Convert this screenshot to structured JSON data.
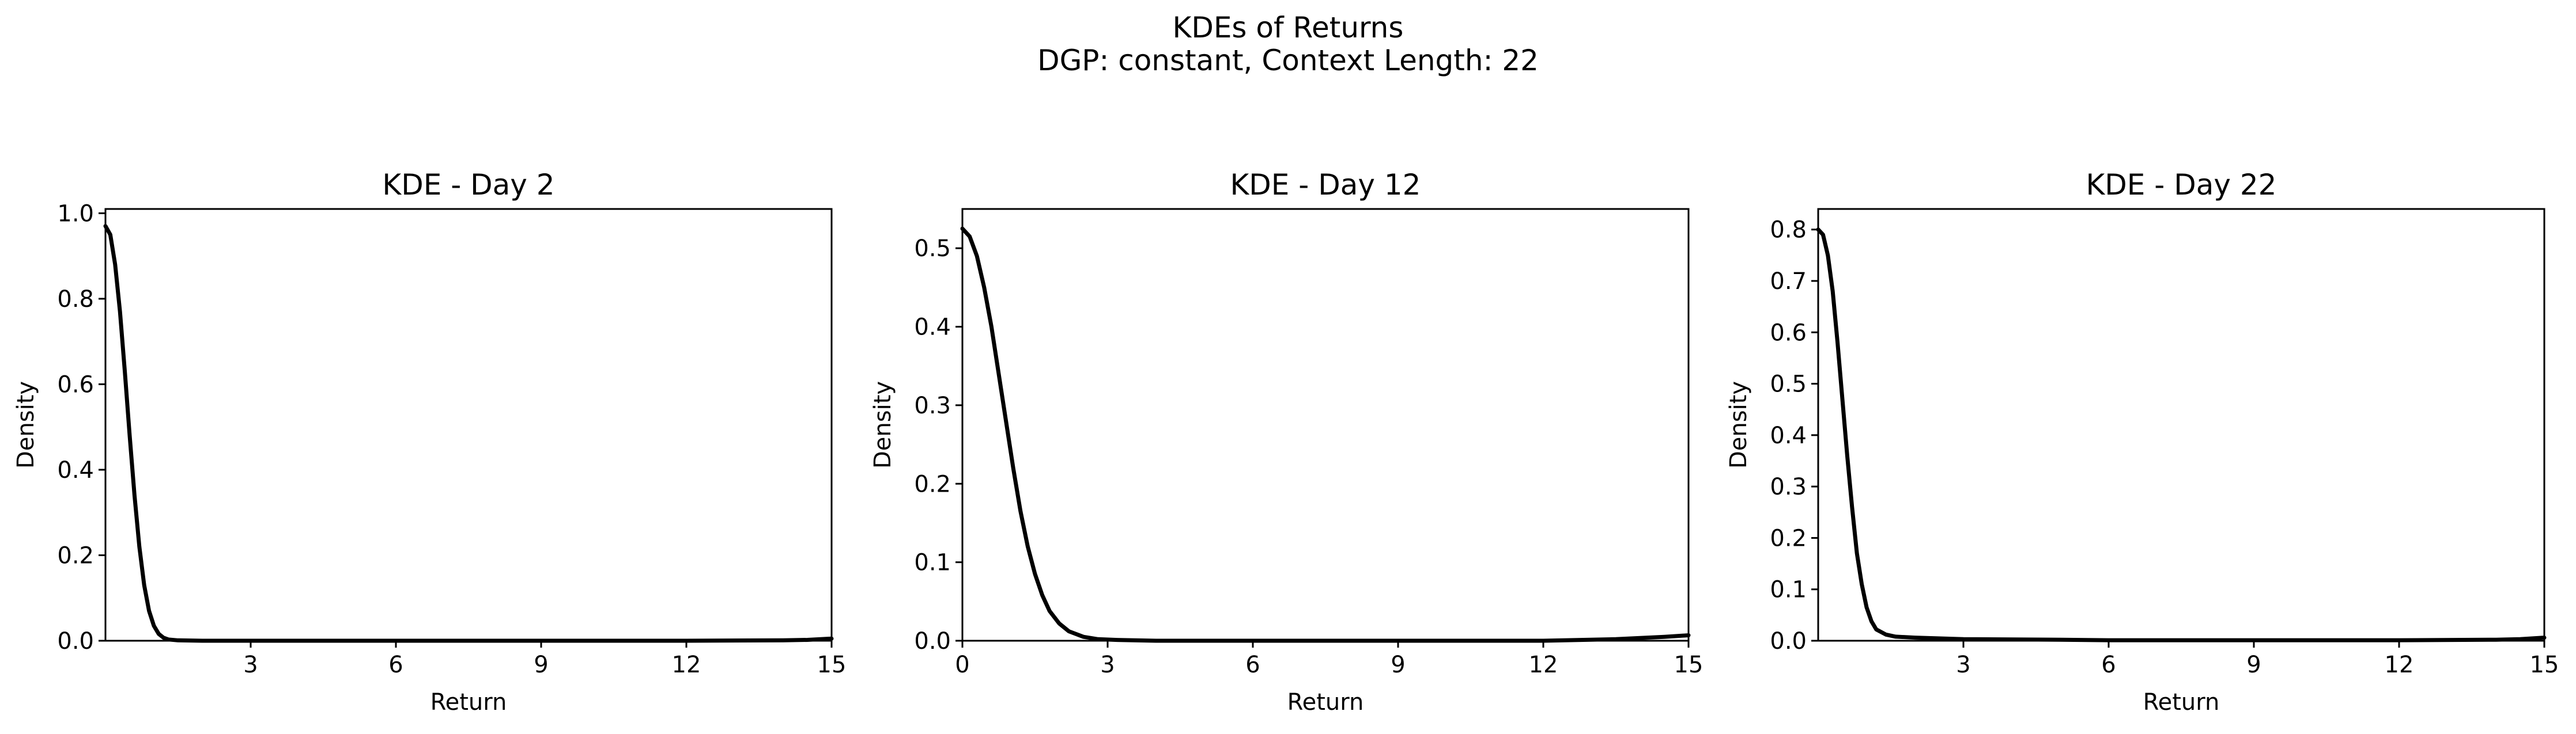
{
  "figure": {
    "title": "KDEs of Returns",
    "subtitle": "DGP: constant, Context Length: 22"
  },
  "chart_data": [
    {
      "type": "line",
      "title": "KDE - Day 2",
      "xlabel": "Return",
      "ylabel": "Density",
      "xlim": [
        0,
        15
      ],
      "ylim": [
        0,
        1.01
      ],
      "xticks": [
        3,
        6,
        9,
        12,
        15
      ],
      "yticks": [
        0.0,
        0.2,
        0.4,
        0.6,
        0.8,
        1.0
      ],
      "ytick_labels": [
        "0.0",
        "0.2",
        "0.4",
        "0.6",
        "0.8",
        "1.0"
      ],
      "series": [
        {
          "x": [
            0,
            0.1,
            0.2,
            0.3,
            0.4,
            0.5,
            0.6,
            0.7,
            0.8,
            0.9,
            1.0,
            1.1,
            1.2,
            1.3,
            1.5,
            2,
            3,
            6,
            9,
            12,
            14,
            14.5,
            15
          ],
          "values": [
            0.97,
            0.95,
            0.88,
            0.77,
            0.63,
            0.48,
            0.34,
            0.22,
            0.13,
            0.07,
            0.035,
            0.016,
            0.007,
            0.003,
            0.001,
            0.0,
            0.0,
            0.0,
            0.0,
            0.0,
            0.001,
            0.002,
            0.005
          ]
        }
      ],
      "grid": false
    },
    {
      "type": "line",
      "title": "KDE - Day 12",
      "xlabel": "Return",
      "ylabel": "Density",
      "xlim": [
        0,
        15
      ],
      "ylim": [
        0,
        0.55
      ],
      "xticks": [
        0,
        3,
        6,
        9,
        12,
        15
      ],
      "yticks": [
        0.0,
        0.1,
        0.2,
        0.3,
        0.4,
        0.5
      ],
      "ytick_labels": [
        "0.0",
        "0.1",
        "0.2",
        "0.3",
        "0.4",
        "0.5"
      ],
      "series": [
        {
          "x": [
            0,
            0.15,
            0.3,
            0.45,
            0.6,
            0.75,
            0.9,
            1.05,
            1.2,
            1.35,
            1.5,
            1.65,
            1.8,
            2.0,
            2.2,
            2.5,
            2.8,
            3.2,
            4,
            6,
            9,
            12,
            13.5,
            14.5,
            15
          ],
          "values": [
            0.525,
            0.515,
            0.49,
            0.45,
            0.4,
            0.34,
            0.28,
            0.22,
            0.165,
            0.12,
            0.085,
            0.058,
            0.038,
            0.022,
            0.012,
            0.005,
            0.002,
            0.001,
            0.0,
            0.0,
            0.0,
            0.0,
            0.002,
            0.005,
            0.007
          ]
        }
      ],
      "grid": false
    },
    {
      "type": "line",
      "title": "KDE - Day 22",
      "xlabel": "Return",
      "ylabel": "Density",
      "xlim": [
        0,
        15
      ],
      "ylim": [
        0,
        0.84
      ],
      "xticks": [
        3,
        6,
        9,
        12,
        15
      ],
      "yticks": [
        0.0,
        0.1,
        0.2,
        0.3,
        0.4,
        0.5,
        0.6,
        0.7,
        0.8
      ],
      "ytick_labels": [
        "0.0",
        "0.1",
        "0.2",
        "0.3",
        "0.4",
        "0.5",
        "0.6",
        "0.7",
        "0.8"
      ],
      "series": [
        {
          "x": [
            0,
            0.1,
            0.2,
            0.3,
            0.4,
            0.5,
            0.6,
            0.7,
            0.8,
            0.9,
            1.0,
            1.1,
            1.2,
            1.4,
            1.6,
            2,
            3,
            5,
            6,
            9,
            12,
            14,
            14.5,
            15
          ],
          "values": [
            0.8,
            0.79,
            0.75,
            0.68,
            0.58,
            0.47,
            0.36,
            0.26,
            0.17,
            0.11,
            0.065,
            0.038,
            0.022,
            0.012,
            0.008,
            0.006,
            0.003,
            0.002,
            0.001,
            0.001,
            0.001,
            0.002,
            0.003,
            0.006
          ]
        }
      ],
      "grid": false
    }
  ]
}
